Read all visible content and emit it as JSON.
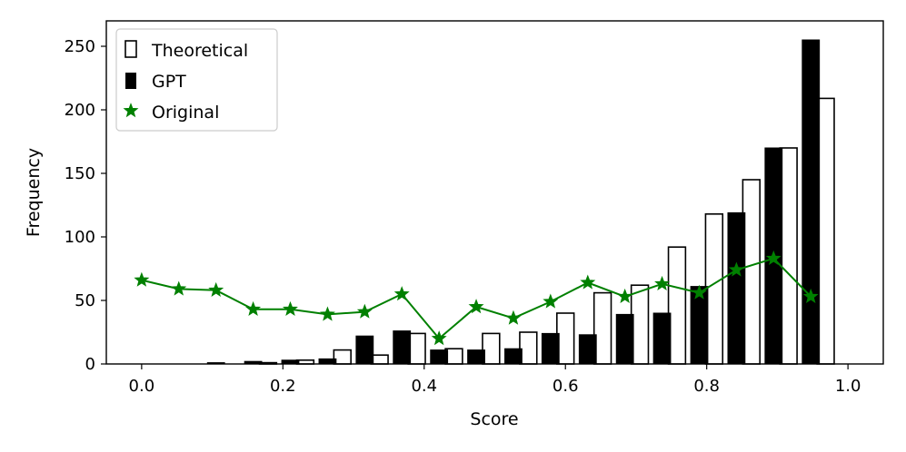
{
  "chart_data": {
    "type": "bar",
    "xlabel": "Score",
    "ylabel": "Frequency",
    "xlim": [
      -0.05,
      1.05
    ],
    "ylim": [
      0,
      270
    ],
    "xticks": [
      "0.0",
      "0.2",
      "0.4",
      "0.6",
      "0.8",
      "1.0"
    ],
    "yticks": [
      "0",
      "50",
      "100",
      "150",
      "200",
      "250"
    ],
    "bin_width": 0.0526,
    "legend_position": "top-left",
    "series": [
      {
        "name": "Theoretical",
        "kind": "bar",
        "style": "hollow",
        "x": [
          0.0211,
          0.0737,
          0.1263,
          0.1789,
          0.2316,
          0.2842,
          0.3368,
          0.3895,
          0.4421,
          0.4947,
          0.5474,
          0.6,
          0.6526,
          0.7053,
          0.7579,
          0.8105,
          0.8632,
          0.9158,
          0.9684
        ],
        "values": [
          0,
          0,
          0,
          1,
          3,
          11,
          7,
          24,
          12,
          24,
          25,
          40,
          56,
          62,
          92,
          118,
          145,
          170,
          209
        ]
      },
      {
        "name": "GPT",
        "kind": "bar",
        "style": "filled",
        "x": [
          0.0,
          0.0526,
          0.1053,
          0.1579,
          0.2105,
          0.2632,
          0.3158,
          0.3684,
          0.4211,
          0.4737,
          0.5263,
          0.5789,
          0.6316,
          0.6842,
          0.7368,
          0.7895,
          0.8421,
          0.8947,
          0.9474
        ],
        "values": [
          0,
          0,
          1,
          2,
          3,
          4,
          22,
          26,
          11,
          11,
          12,
          24,
          23,
          39,
          40,
          61,
          119,
          170,
          255
        ]
      },
      {
        "name": "Original",
        "kind": "line",
        "marker": "star",
        "x": [
          0.0,
          0.0526,
          0.1053,
          0.1579,
          0.2105,
          0.2632,
          0.3158,
          0.3684,
          0.4211,
          0.4737,
          0.5263,
          0.5789,
          0.6316,
          0.6842,
          0.7368,
          0.7895,
          0.8421,
          0.8947,
          0.9474
        ],
        "values": [
          66,
          59,
          58,
          43,
          43,
          39,
          41,
          55,
          20,
          45,
          36,
          49,
          64,
          53,
          63,
          56,
          74,
          83,
          53
        ]
      }
    ],
    "colors": {
      "gpt": "#000000",
      "theoretical_edge": "#000000",
      "theoretical_fill": "#ffffff",
      "original": "#008000"
    }
  }
}
